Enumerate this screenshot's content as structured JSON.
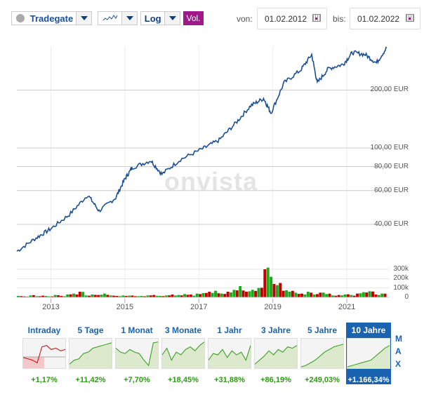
{
  "toolbar": {
    "exchange": "Tradegate",
    "chart_type_icon": "line-chart-icon",
    "scale": "Log",
    "volume_label": "Vol.",
    "from_label": "von:",
    "from_date": "01.02.2012",
    "to_label": "bis:",
    "to_date": "01.02.2022"
  },
  "watermark": "onvista",
  "chart_data": {
    "type": "line",
    "y_scale": "log",
    "y_ticks": [
      "200,00 EUR",
      "100,00 EUR",
      "80,00 EUR",
      "60,00 EUR",
      "40,00 EUR"
    ],
    "y_tick_values": [
      200,
      100,
      80,
      60,
      40
    ],
    "x_ticks": [
      "2013",
      "2015",
      "2017",
      "2019",
      "2021"
    ],
    "xlim": [
      2012.08,
      2022.08
    ],
    "color": "#1b4f94",
    "x": [
      2012.08,
      2012.6,
      2013.0,
      2013.5,
      2014.0,
      2014.3,
      2014.75,
      2015.0,
      2015.2,
      2015.7,
      2016.0,
      2016.5,
      2017.1,
      2017.55,
      2018.0,
      2018.4,
      2018.75,
      2018.95,
      2019.3,
      2019.75,
      2020.05,
      2020.2,
      2020.5,
      2020.9,
      2021.15,
      2021.5,
      2021.8,
      2022.08
    ],
    "y": [
      29,
      34,
      38,
      45,
      57,
      47,
      55,
      69,
      79,
      86,
      73,
      87,
      99,
      110,
      135,
      166,
      181,
      152,
      218,
      254,
      306,
      218,
      259,
      272,
      314,
      306,
      277,
      333
    ],
    "volume": {
      "y_ticks": [
        "300k",
        "200k",
        "100k",
        "0"
      ],
      "y_tick_values": [
        300000,
        200000,
        100000,
        0
      ],
      "values": [
        15000,
        10000,
        20000,
        12000,
        18000,
        10000,
        25000,
        15000,
        30000,
        40000,
        60000,
        20000,
        30000,
        25000,
        40000,
        20000,
        15000,
        20000,
        18000,
        12000,
        15000,
        20000,
        25000,
        15000,
        20000,
        30000,
        25000,
        35000,
        30000,
        40000,
        45000,
        60000,
        70000,
        40000,
        60000,
        80000,
        120000,
        60000,
        80000,
        100000,
        300000,
        220000,
        130000,
        70000,
        60000,
        50000,
        40000,
        60000,
        30000,
        50000,
        35000,
        20000,
        25000,
        30000,
        25000,
        40000,
        55000,
        65000,
        30000,
        40000
      ],
      "colors": {
        "up": "#1aab1a",
        "down": "#c00000"
      }
    }
  },
  "periods": [
    {
      "label": "Intraday",
      "change": "+1,17%"
    },
    {
      "label": "5 Tage",
      "change": "+11,42%"
    },
    {
      "label": "1 Monat",
      "change": "+7,70%"
    },
    {
      "label": "3 Monate",
      "change": "+18,45%"
    },
    {
      "label": "1 Jahr",
      "change": "+31,88%"
    },
    {
      "label": "3 Jahre",
      "change": "+86,19%"
    },
    {
      "label": "5 Jahre",
      "change": "+249,03%"
    },
    {
      "label": "10 Jahre",
      "change": "+1.166,34%",
      "selected": true
    }
  ],
  "max_letters": [
    "M",
    "A",
    "X"
  ]
}
